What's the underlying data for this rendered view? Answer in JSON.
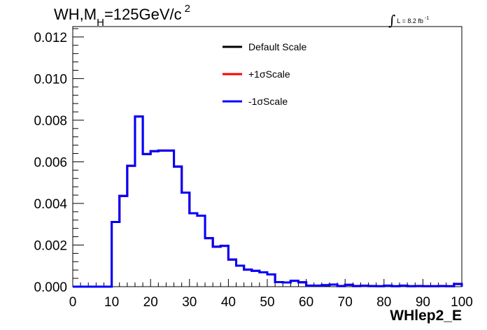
{
  "header": {
    "title_main": "WH,M",
    "title_sub": "H",
    "title_rest": "=125GeV/c",
    "title_sup": "2",
    "lumi_text": "L = 8.2 fb",
    "lumi_sup": "-1"
  },
  "chart_data": {
    "type": "line",
    "xlabel": "WHlep2_E",
    "ylabel": "",
    "xlim": [
      0,
      100
    ],
    "ylim": [
      0,
      0.0125
    ],
    "x_ticks": [
      0,
      10,
      20,
      30,
      40,
      50,
      60,
      70,
      80,
      90,
      100
    ],
    "y_ticks": [
      0.0,
      0.002,
      0.004,
      0.006,
      0.008,
      0.01,
      0.012
    ],
    "y_tick_labels": [
      "0.000",
      "0.002",
      "0.004",
      "0.006",
      "0.008",
      "0.010",
      "0.012"
    ],
    "grid": false,
    "legend_position": "top-center",
    "bin_edges": [
      0,
      2,
      4,
      6,
      8,
      10,
      12,
      14,
      16,
      18,
      20,
      22,
      24,
      26,
      28,
      30,
      32,
      34,
      36,
      38,
      40,
      42,
      44,
      46,
      48,
      50,
      52,
      54,
      56,
      58,
      60,
      62,
      64,
      66,
      68,
      70,
      72,
      74,
      76,
      78,
      80,
      82,
      84,
      86,
      88,
      90,
      92,
      94,
      96,
      98,
      100
    ],
    "series": [
      {
        "name": "Default Scale",
        "color": "#000000",
        "values": [
          0,
          0,
          0,
          0,
          0,
          0.00311,
          0.00436,
          0.00581,
          0.00818,
          0.00637,
          0.00651,
          0.00654,
          0.00654,
          0.00577,
          0.00452,
          0.00353,
          0.00341,
          0.00233,
          0.00192,
          0.00196,
          0.0013,
          0.00101,
          0.00082,
          0.00076,
          0.00069,
          0.00059,
          0.00022,
          0.0002,
          0.00028,
          0.00021,
          5e-05,
          5e-05,
          7e-05,
          0.0001,
          3e-05,
          9e-05,
          3e-05,
          4e-05,
          3e-05,
          2e-05,
          5e-05,
          2e-05,
          5e-05,
          2e-05,
          3e-05,
          2e-05,
          2e-05,
          3e-05,
          2e-05,
          0.00013
        ]
      },
      {
        "name": "+1σScale",
        "color": "#ff0000",
        "values": [
          0,
          0,
          0,
          0,
          0,
          0.00311,
          0.00436,
          0.00581,
          0.00818,
          0.00637,
          0.00651,
          0.00654,
          0.00654,
          0.00577,
          0.00452,
          0.00353,
          0.00341,
          0.00233,
          0.00192,
          0.00196,
          0.0013,
          0.00101,
          0.00082,
          0.00076,
          0.00069,
          0.00059,
          0.00022,
          0.0002,
          0.00028,
          0.00021,
          5e-05,
          5e-05,
          7e-05,
          0.0001,
          3e-05,
          9e-05,
          3e-05,
          4e-05,
          3e-05,
          2e-05,
          5e-05,
          2e-05,
          5e-05,
          2e-05,
          3e-05,
          2e-05,
          2e-05,
          3e-05,
          2e-05,
          0.00013
        ]
      },
      {
        "name": "-1σScale",
        "color": "#0000ff",
        "values": [
          0,
          0,
          0,
          0,
          0,
          0.00311,
          0.00436,
          0.00581,
          0.00818,
          0.00637,
          0.00651,
          0.00654,
          0.00654,
          0.00577,
          0.00452,
          0.00353,
          0.00341,
          0.00233,
          0.00192,
          0.00196,
          0.0013,
          0.00101,
          0.00082,
          0.00076,
          0.00069,
          0.00059,
          0.00022,
          0.0002,
          0.00028,
          0.00021,
          5e-05,
          5e-05,
          7e-05,
          0.0001,
          3e-05,
          9e-05,
          3e-05,
          4e-05,
          3e-05,
          2e-05,
          5e-05,
          2e-05,
          5e-05,
          2e-05,
          3e-05,
          2e-05,
          2e-05,
          3e-05,
          2e-05,
          0.00013
        ]
      }
    ]
  }
}
